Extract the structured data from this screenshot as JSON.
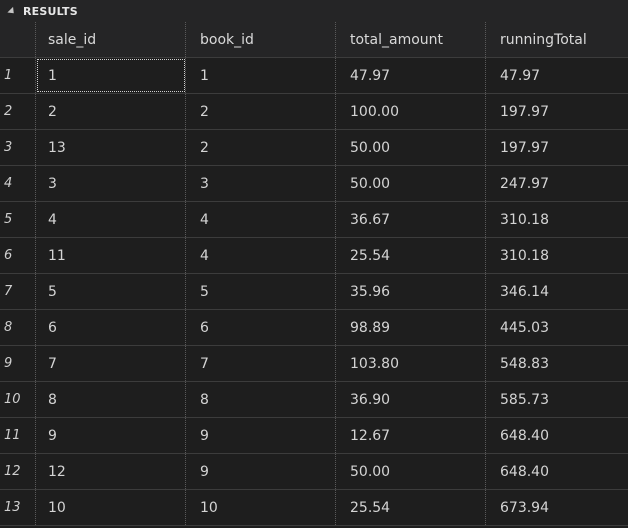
{
  "panel": {
    "title": "RESULTS"
  },
  "columns": [
    "sale_id",
    "book_id",
    "total_amount",
    "runningTotal"
  ],
  "rows": [
    {
      "n": "1",
      "sale_id": "1",
      "book_id": "1",
      "total_amount": "47.97",
      "runningTotal": "47.97"
    },
    {
      "n": "2",
      "sale_id": "2",
      "book_id": "2",
      "total_amount": "100.00",
      "runningTotal": "197.97"
    },
    {
      "n": "3",
      "sale_id": "13",
      "book_id": "2",
      "total_amount": "50.00",
      "runningTotal": "197.97"
    },
    {
      "n": "4",
      "sale_id": "3",
      "book_id": "3",
      "total_amount": "50.00",
      "runningTotal": "247.97"
    },
    {
      "n": "5",
      "sale_id": "4",
      "book_id": "4",
      "total_amount": "36.67",
      "runningTotal": "310.18"
    },
    {
      "n": "6",
      "sale_id": "11",
      "book_id": "4",
      "total_amount": "25.54",
      "runningTotal": "310.18"
    },
    {
      "n": "7",
      "sale_id": "5",
      "book_id": "5",
      "total_amount": "35.96",
      "runningTotal": "346.14"
    },
    {
      "n": "8",
      "sale_id": "6",
      "book_id": "6",
      "total_amount": "98.89",
      "runningTotal": "445.03"
    },
    {
      "n": "9",
      "sale_id": "7",
      "book_id": "7",
      "total_amount": "103.80",
      "runningTotal": "548.83"
    },
    {
      "n": "10",
      "sale_id": "8",
      "book_id": "8",
      "total_amount": "36.90",
      "runningTotal": "585.73"
    },
    {
      "n": "11",
      "sale_id": "9",
      "book_id": "9",
      "total_amount": "12.67",
      "runningTotal": "648.40"
    },
    {
      "n": "12",
      "sale_id": "12",
      "book_id": "9",
      "total_amount": "50.00",
      "runningTotal": "648.40"
    },
    {
      "n": "13",
      "sale_id": "10",
      "book_id": "10",
      "total_amount": "25.54",
      "runningTotal": "673.94"
    }
  ],
  "colors": {
    "background": "#1e1e1e",
    "header": "#252526",
    "gridline": "#3c3c3c"
  }
}
